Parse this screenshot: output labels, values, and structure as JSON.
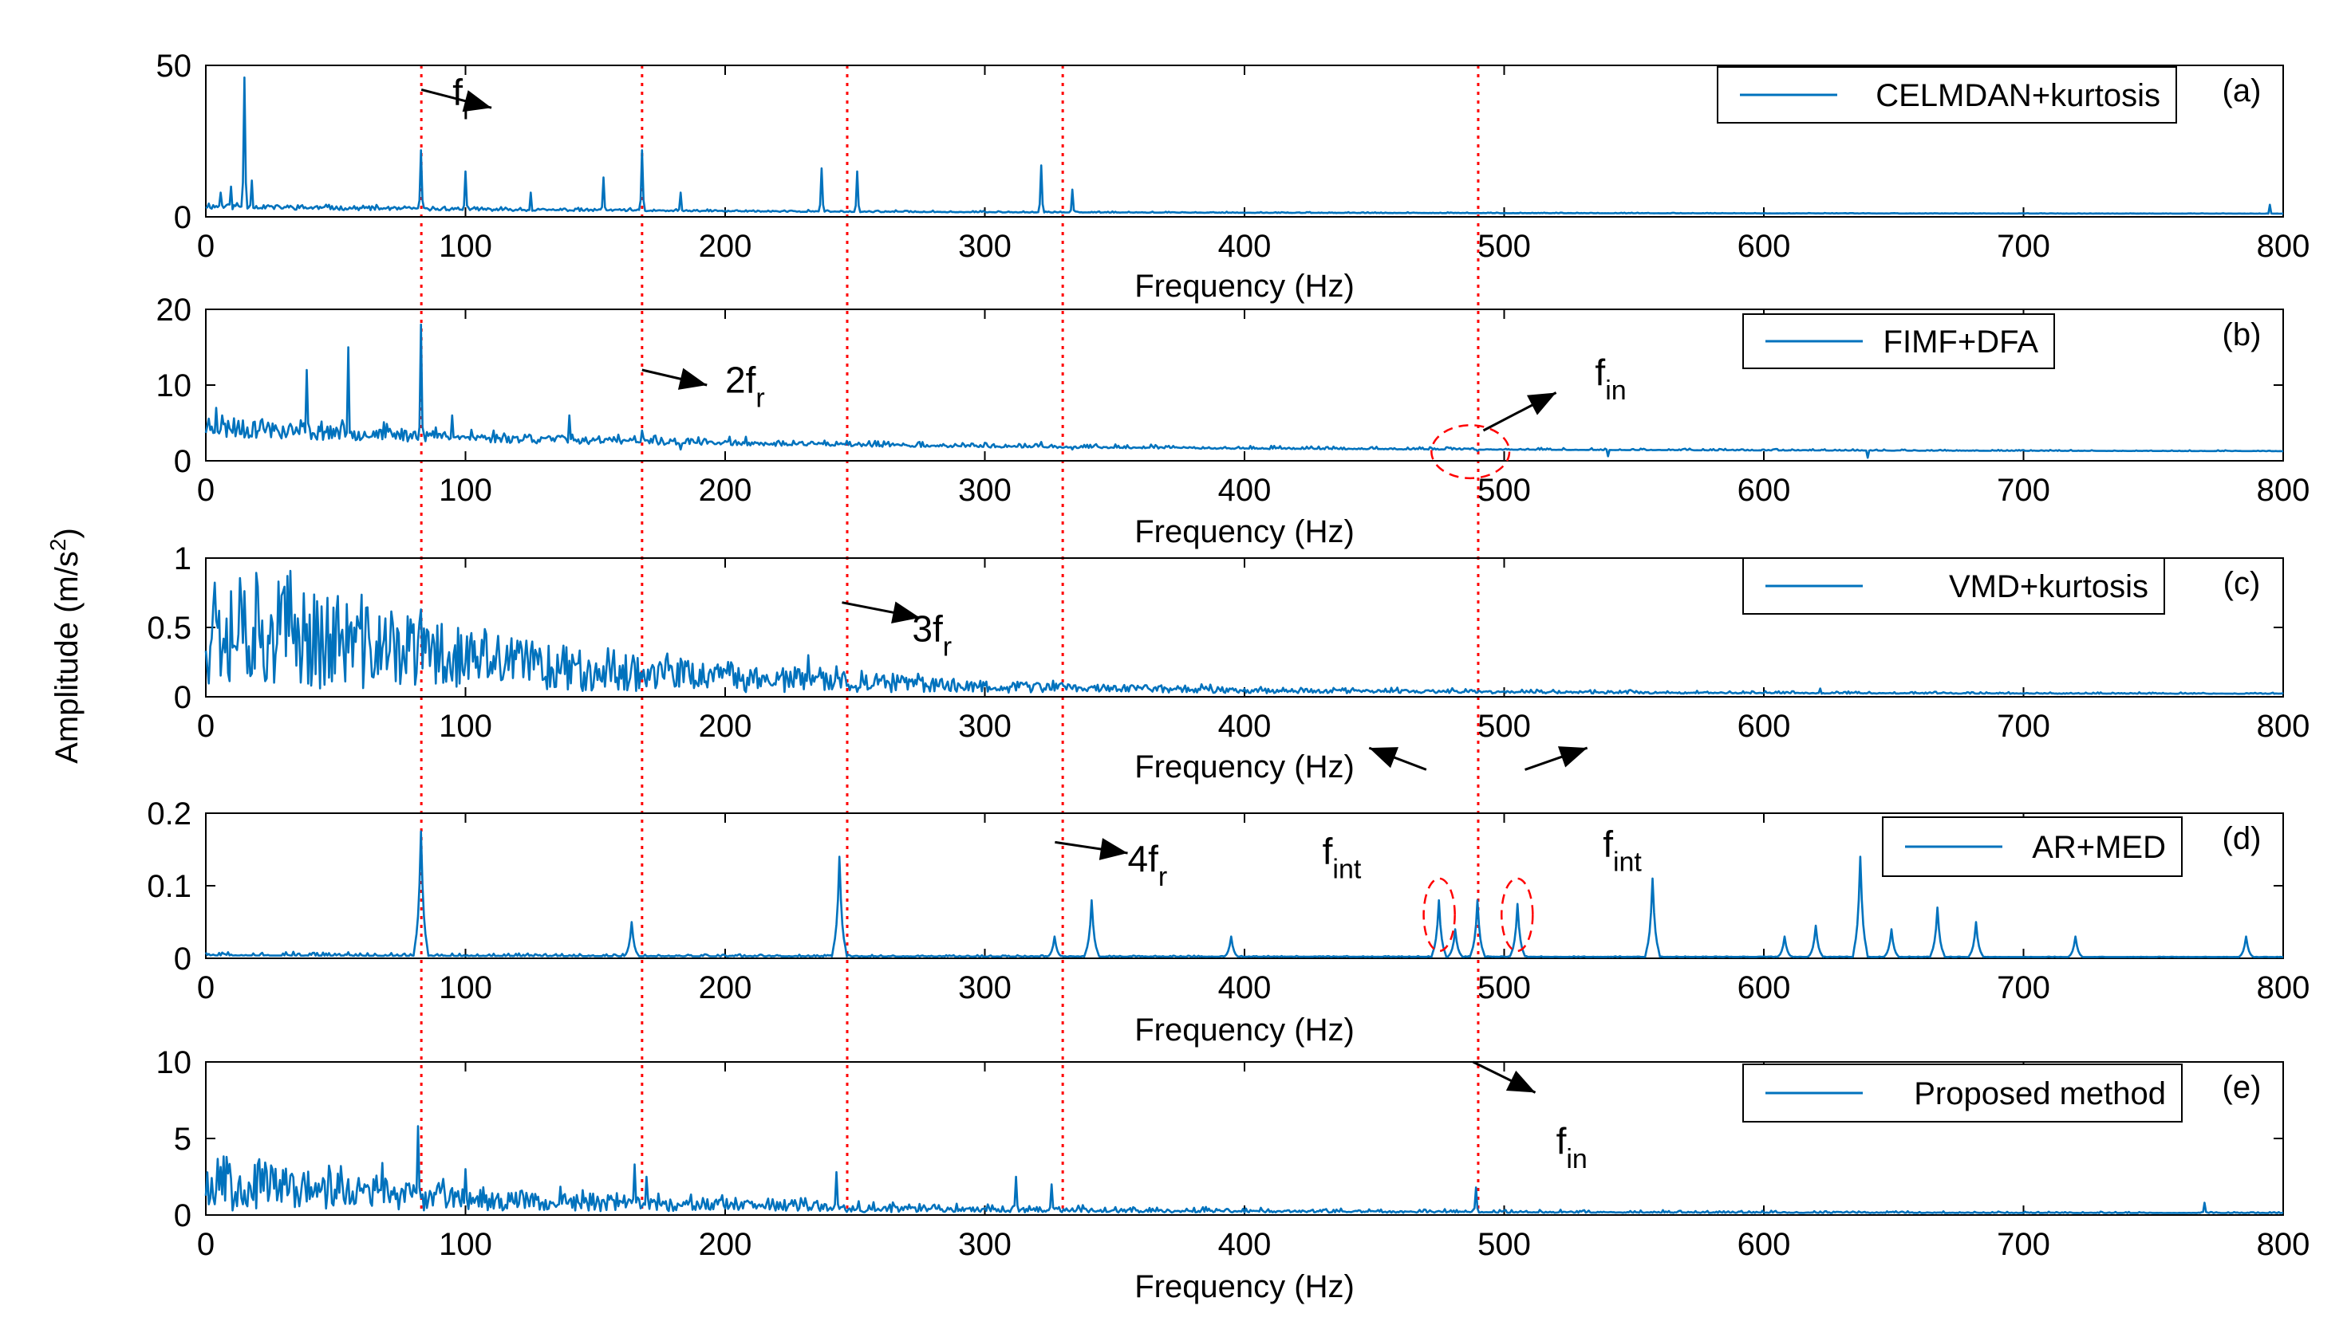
{
  "figure": {
    "ylabel_main": "Amplitude (m/s",
    "ylabel_sup": "2",
    "ylabel_end": ")",
    "colors": {
      "line": "#0072BD",
      "guide": "#FF0000",
      "axis": "#000000",
      "arrow": "#000000"
    }
  },
  "chart_data": [
    {
      "id": "a",
      "type": "line",
      "panel_label": "(a)",
      "legend": "CELMDAN+kurtosis",
      "xlabel": "Frequency (Hz)",
      "xlim": [
        0,
        800
      ],
      "ylim": [
        0,
        50
      ],
      "xticks": [
        "0",
        "100",
        "200",
        "300",
        "400",
        "500",
        "600",
        "700",
        "800"
      ],
      "yticks": [
        {
          "v": 0,
          "t": "0"
        },
        {
          "v": 50,
          "t": "50"
        }
      ],
      "baseline": 2.5,
      "decay": 0.6,
      "noise": 1.2,
      "seed": 11,
      "peaks": [
        [
          15,
          46
        ],
        [
          6,
          8
        ],
        [
          10,
          10
        ],
        [
          18,
          12
        ],
        [
          83,
          22
        ],
        [
          100,
          15
        ],
        [
          125,
          8
        ],
        [
          153,
          13
        ],
        [
          168,
          22
        ],
        [
          183,
          8
        ],
        [
          237,
          16
        ],
        [
          251,
          15
        ],
        [
          322,
          17
        ],
        [
          334,
          9
        ],
        [
          795,
          4
        ]
      ],
      "annotations": [
        {
          "text": "f",
          "sub": "r",
          "at_hz": 95,
          "at_val": 37
        }
      ],
      "arrows": [
        {
          "from": [
            83,
            42
          ],
          "to": [
            110,
            36
          ]
        }
      ],
      "ellipses": []
    },
    {
      "id": "b",
      "type": "line",
      "panel_label": "(b)",
      "legend": "FIMF+DFA",
      "xlabel": "Frequency (Hz)",
      "xlim": [
        0,
        800
      ],
      "ylim": [
        0,
        20
      ],
      "xticks": [
        "0",
        "100",
        "200",
        "300",
        "400",
        "500",
        "600",
        "700",
        "800"
      ],
      "yticks": [
        {
          "v": 0,
          "t": "0"
        },
        {
          "v": 10,
          "t": "10"
        },
        {
          "v": 20,
          "t": "20"
        }
      ],
      "baseline": 3.0,
      "decay": 0.9,
      "noise": 1.5,
      "seed": 23,
      "peaks": [
        [
          4,
          7
        ],
        [
          39,
          12
        ],
        [
          55,
          15
        ],
        [
          83,
          18
        ],
        [
          95,
          6
        ],
        [
          140,
          6
        ],
        [
          168,
          4
        ],
        [
          183,
          1.5
        ],
        [
          222,
          2
        ],
        [
          322,
          2.5
        ],
        [
          334,
          1.5
        ],
        [
          490,
          1.3
        ],
        [
          540,
          0.6
        ],
        [
          640,
          0.4
        ]
      ],
      "annotations": [
        {
          "text": "2f",
          "sub": "r",
          "at_hz": 200,
          "at_val": 9
        }
      ],
      "annotations2": [
        {
          "text": "f",
          "sub": "in",
          "at_hz": 535,
          "at_val": 10
        }
      ],
      "arrows": [
        {
          "from": [
            168,
            12
          ],
          "to": [
            193,
            10
          ]
        },
        {
          "from": [
            492,
            4
          ],
          "to": [
            520,
            9
          ]
        }
      ],
      "ellipses": [
        {
          "cx_hz": 487,
          "cy_val": 1.2,
          "rx_hz": 15,
          "ry_val": 3.5
        }
      ]
    },
    {
      "id": "c",
      "type": "line",
      "panel_label": "(c)",
      "legend": "VMD+kurtosis",
      "xlabel": "Frequency (Hz)",
      "xlim": [
        0,
        800
      ],
      "ylim": [
        0,
        1
      ],
      "xticks": [
        "0",
        "100",
        "200",
        "300",
        "400",
        "500",
        "600",
        "700",
        "800"
      ],
      "yticks": [
        {
          "v": 0,
          "t": "0"
        },
        {
          "v": 0.5,
          "t": "0.5"
        },
        {
          "v": 1,
          "t": "1"
        }
      ],
      "baseline": 0.05,
      "decay": 0.35,
      "noise": 0.12,
      "seed": 37,
      "peaks": [
        [
          5,
          0.62
        ],
        [
          14,
          0.7
        ],
        [
          22,
          0.55
        ],
        [
          33,
          0.5
        ],
        [
          48,
          0.45
        ],
        [
          68,
          0.35
        ],
        [
          83,
          0.63
        ],
        [
          100,
          0.25
        ],
        [
          150,
          0.17
        ],
        [
          185,
          0.22
        ],
        [
          232,
          0.3
        ],
        [
          243,
          0.22
        ],
        [
          330,
          0.1
        ],
        [
          622,
          0.06
        ],
        [
          705,
          0.03
        ]
      ],
      "annotations": [
        {
          "text": "3f",
          "sub": "r",
          "at_hz": 272,
          "at_val": 0.4
        }
      ],
      "arrows": [
        {
          "from": [
            245,
            0.68
          ],
          "to": [
            275,
            0.57
          ]
        }
      ],
      "ellipses": []
    },
    {
      "id": "d",
      "type": "line",
      "panel_label": "(d)",
      "legend": "AR+MED",
      "xlabel": "Frequency (Hz)",
      "xlim": [
        0,
        800
      ],
      "ylim": [
        0,
        0.2
      ],
      "xticks": [
        "0",
        "100",
        "200",
        "300",
        "400",
        "500",
        "600",
        "700",
        "800"
      ],
      "yticks": [
        {
          "v": 0,
          "t": "0"
        },
        {
          "v": 0.1,
          "t": "0.1"
        },
        {
          "v": 0.2,
          "t": "0.2"
        }
      ],
      "baseline": 0.004,
      "decay": 0.0,
      "noise": 0.006,
      "seed": 51,
      "peaks": [
        [
          83,
          0.175
        ],
        [
          164,
          0.05
        ],
        [
          244,
          0.14
        ],
        [
          327,
          0.03
        ],
        [
          341,
          0.08
        ],
        [
          395,
          0.03
        ],
        [
          475,
          0.08
        ],
        [
          481,
          0.04
        ],
        [
          490,
          0.08
        ],
        [
          505,
          0.075
        ],
        [
          557,
          0.11
        ],
        [
          608,
          0.03
        ],
        [
          620,
          0.045
        ],
        [
          637,
          0.14
        ],
        [
          649,
          0.04
        ],
        [
          667,
          0.07
        ],
        [
          682,
          0.05
        ],
        [
          720,
          0.03
        ],
        [
          786,
          0.03
        ]
      ],
      "annotations": [
        {
          "text": "4f",
          "sub": "r",
          "at_hz": 355,
          "at_val": 0.12
        }
      ],
      "annotations2": [
        {
          "text": "f",
          "sub": "int",
          "at_hz": 430,
          "at_val": 0.13
        },
        {
          "text": "f",
          "sub": "int",
          "at_hz": 538,
          "at_val": 0.14
        }
      ],
      "arrows": [
        {
          "from": [
            327,
            0.16
          ],
          "to": [
            355,
            0.145
          ]
        },
        {
          "from": [
            470,
            0.26
          ],
          "to": [
            448,
            0.29
          ]
        },
        {
          "from": [
            508,
            0.26
          ],
          "to": [
            532,
            0.29
          ]
        }
      ],
      "ellipses": [
        {
          "cx_hz": 475,
          "cy_val": 0.06,
          "rx_hz": 6,
          "ry_val": 0.05
        },
        {
          "cx_hz": 505,
          "cy_val": 0.06,
          "rx_hz": 6,
          "ry_val": 0.05
        }
      ]
    },
    {
      "id": "e",
      "type": "line",
      "panel_label": "(e)",
      "legend": "Proposed method",
      "xlabel": "Frequency (Hz)",
      "xlim": [
        0,
        800
      ],
      "ylim": [
        0,
        10
      ],
      "xticks": [
        "0",
        "100",
        "200",
        "300",
        "400",
        "500",
        "600",
        "700",
        "800"
      ],
      "yticks": [
        {
          "v": 0,
          "t": "0"
        },
        {
          "v": 5,
          "t": "5"
        },
        {
          "v": 10,
          "t": "10"
        }
      ],
      "baseline": 0.3,
      "decay": 1.2,
      "noise": 1.0,
      "seed": 67,
      "peaks": [
        [
          8,
          3.8
        ],
        [
          22,
          3
        ],
        [
          33,
          2.7
        ],
        [
          52,
          3.2
        ],
        [
          68,
          3.4
        ],
        [
          82,
          5.8
        ],
        [
          100,
          3
        ],
        [
          165,
          3.3
        ],
        [
          170,
          2.5
        ],
        [
          243,
          2.8
        ],
        [
          312,
          2.5
        ],
        [
          326,
          2
        ],
        [
          489,
          1.8
        ],
        [
          770,
          0.8
        ]
      ],
      "annotations": [
        {
          "text": "f",
          "sub": "in",
          "at_hz": 520,
          "at_val": 4
        }
      ],
      "arrows": [
        {
          "from": [
            488,
            10
          ],
          "to": [
            512,
            8
          ]
        }
      ],
      "ellipses": []
    }
  ],
  "guide_lines_hz": [
    83,
    168,
    247,
    330,
    490
  ]
}
